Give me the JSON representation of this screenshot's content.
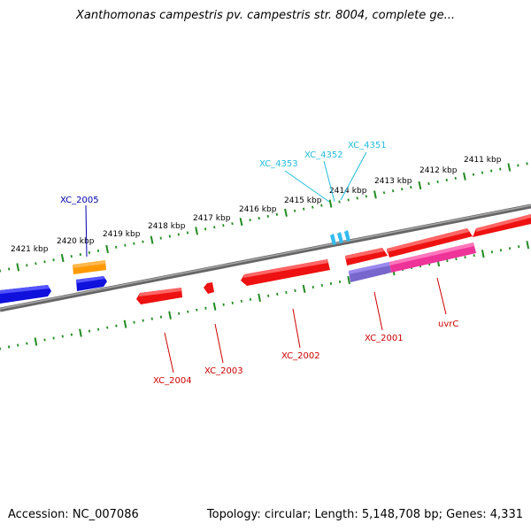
{
  "title": "Xanthomonas campestris pv. campestris str. 8004, complete ge...",
  "footer": {
    "accession": "Accession: NC_007086",
    "summary": "Topology: circular; Length: 5,148,708 bp; Genes: 4,331"
  },
  "ruler": {
    "labels": [
      "2421 kbp",
      "2420 kbp",
      "2419 kbp",
      "2418 kbp",
      "2417 kbp",
      "2416 kbp",
      "2415 kbp",
      "2414 kbp",
      "2413 kbp",
      "2412 kbp",
      "2411 kbp"
    ]
  },
  "colors": {
    "backbone": "#808080",
    "tick": "#228B22",
    "red": "#ee1111",
    "blue": "#1111dd",
    "orange": "#ff9900",
    "purple": "#7766cc",
    "magenta": "#ee3399",
    "cyan": "#33bbee",
    "label_red": "#cc0000",
    "label_blue": "#0000aa",
    "label_cyan": "#22bbdd"
  },
  "gene_labels": [
    {
      "id": "XC_2005",
      "text": "XC_2005",
      "color": "label_blue"
    },
    {
      "id": "XC_4353",
      "text": "XC_4353",
      "color": "label_cyan"
    },
    {
      "id": "XC_4352",
      "text": "XC_4352",
      "color": "label_cyan"
    },
    {
      "id": "XC_4351",
      "text": "XC_4351",
      "color": "label_cyan"
    },
    {
      "id": "XC_2004",
      "text": "XC_2004",
      "color": "label_red"
    },
    {
      "id": "XC_2003",
      "text": "XC_2003",
      "color": "label_red"
    },
    {
      "id": "XC_2002",
      "text": "XC_2002",
      "color": "label_red"
    },
    {
      "id": "XC_2001",
      "text": "XC_2001",
      "color": "label_red"
    },
    {
      "id": "uvrC",
      "text": "uvrC",
      "color": "label_red"
    }
  ]
}
